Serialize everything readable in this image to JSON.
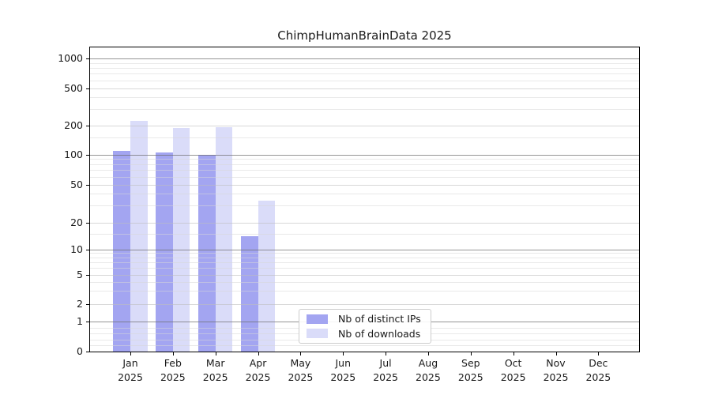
{
  "title": "ChimpHumanBrainData 2025",
  "chart_data": {
    "type": "bar",
    "title": "ChimpHumanBrainData 2025",
    "xlabel": "",
    "ylabel": "",
    "y_axis": {
      "scale": "symlog",
      "ticks": [
        0,
        1,
        2,
        5,
        10,
        20,
        50,
        100,
        200,
        500,
        1000
      ],
      "ylim": [
        0,
        1300
      ],
      "grid": true
    },
    "categories": [
      {
        "month": "Jan",
        "year": "2025"
      },
      {
        "month": "Feb",
        "year": "2025"
      },
      {
        "month": "Mar",
        "year": "2025"
      },
      {
        "month": "Apr",
        "year": "2025"
      },
      {
        "month": "May",
        "year": "2025"
      },
      {
        "month": "Jun",
        "year": "2025"
      },
      {
        "month": "Jul",
        "year": "2025"
      },
      {
        "month": "Aug",
        "year": "2025"
      },
      {
        "month": "Sep",
        "year": "2025"
      },
      {
        "month": "Oct",
        "year": "2025"
      },
      {
        "month": "Nov",
        "year": "2025"
      },
      {
        "month": "Dec",
        "year": "2025"
      }
    ],
    "series": [
      {
        "name": "Nb of distinct IPs",
        "color": "#a3a5f1",
        "values": [
          110,
          105,
          99,
          14,
          0,
          0,
          0,
          0,
          0,
          0,
          0,
          0
        ]
      },
      {
        "name": "Nb of downloads",
        "color": "#dadcf9",
        "values": [
          223,
          190,
          191,
          34,
          0,
          0,
          0,
          0,
          0,
          0,
          0,
          0
        ]
      }
    ],
    "legend_position": "lower center"
  }
}
